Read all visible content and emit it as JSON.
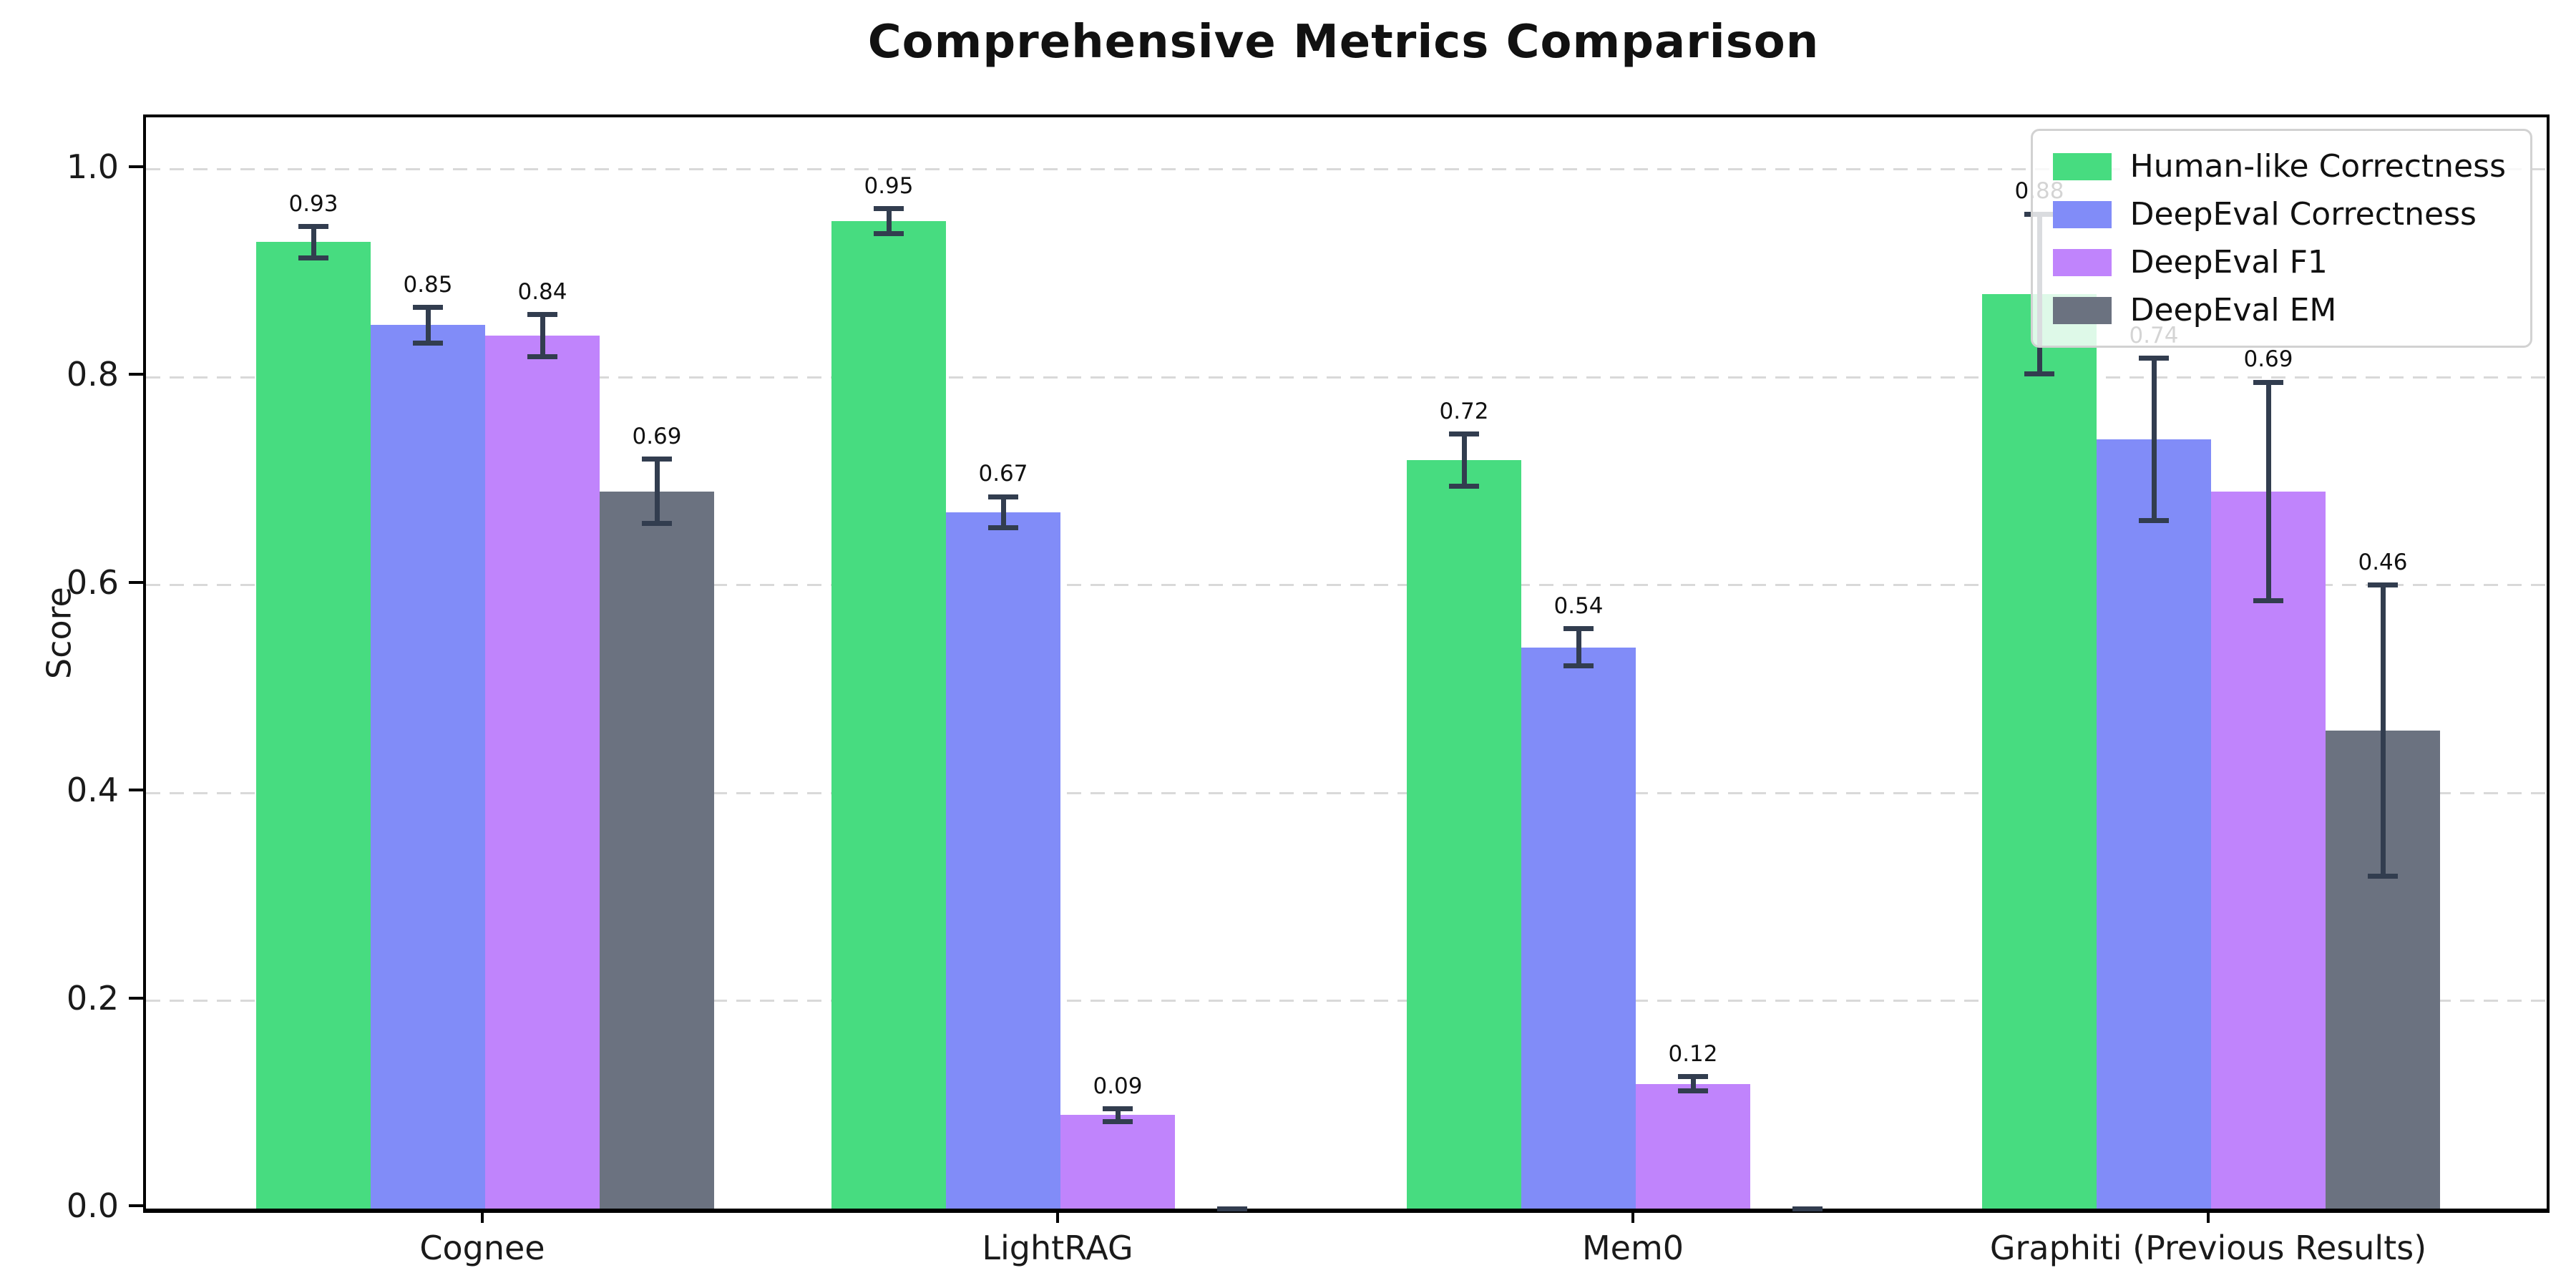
{
  "chart_data": {
    "type": "bar",
    "title": "Comprehensive Metrics Comparison",
    "xlabel": "",
    "ylabel": "Score",
    "ylim": [
      0,
      1.05
    ],
    "yticks": [
      0.0,
      0.2,
      0.4,
      0.6,
      0.8,
      1.0
    ],
    "grid": "horizontal-dashed",
    "grid_color": "#d9d9d9",
    "background_color": "#ffffff",
    "error_bar_color": "#323d4f",
    "legend_position": "upper right",
    "categories": [
      "Cognee",
      "LightRAG",
      "Mem0",
      "Graphiti (Previous Results)"
    ],
    "series": [
      {
        "name": "Human-like Correctness",
        "color": "#47dc80",
        "values": [
          0.93,
          0.95,
          0.72,
          0.88
        ],
        "errors": [
          0.015,
          0.012,
          0.025,
          0.077
        ]
      },
      {
        "name": "DeepEval Correctness",
        "color": "#818cf8",
        "values": [
          0.85,
          0.67,
          0.54,
          0.74
        ],
        "errors": [
          0.017,
          0.015,
          0.018,
          0.078
        ]
      },
      {
        "name": "DeepEval F1",
        "color": "#c084fc",
        "values": [
          0.84,
          0.09,
          0.12,
          0.69
        ],
        "errors": [
          0.02,
          0.006,
          0.007,
          0.105
        ]
      },
      {
        "name": "DeepEval EM",
        "color": "#6b7280",
        "values": [
          0.69,
          0.0,
          0.0,
          0.46
        ],
        "errors": [
          0.031,
          0.0,
          0.0,
          0.14
        ]
      }
    ],
    "bar_value_labels": {
      "Cognee": [
        "0.93",
        "0.85",
        "0.84",
        "0.69"
      ],
      "LightRAG": [
        "0.95",
        "0.67",
        "0.09",
        ""
      ],
      "Mem0": [
        "0.72",
        "0.54",
        "0.12",
        ""
      ],
      "Graphiti (Previous Results)": [
        "0.88",
        "0.74",
        "0.69",
        "0.46"
      ]
    }
  }
}
